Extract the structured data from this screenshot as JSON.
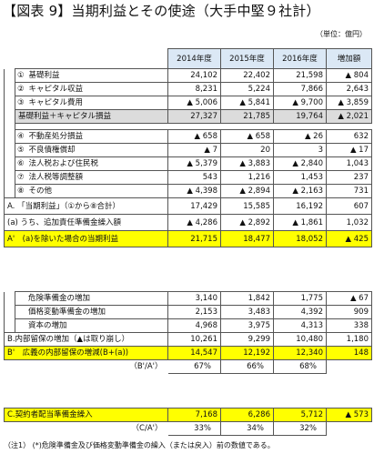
{
  "title": "【図表 9】当期利益とその使途（大手中堅９社計）",
  "unit": "（単位：億円）",
  "note": "（注1） (*)危険準備金及び価格変動準備金の繰入（または戻入）前の数値である。",
  "headers": {
    "y2014": "2014年度",
    "y2015": "2015年度",
    "y2016": "2016年度",
    "change": "増加額"
  },
  "rows": {
    "r1": {
      "no": "①",
      "label": "基礎利益",
      "v2014": "24,102",
      "v2015": "22,402",
      "v2016": "21,598",
      "chg": "▲ 804"
    },
    "r2": {
      "no": "②",
      "label": "キャピタル収益",
      "v2014": "8,231",
      "v2015": "5,224",
      "v2016": "7,866",
      "chg": "2,643"
    },
    "r3": {
      "no": "③",
      "label": "キャピタル費用",
      "v2014": "▲ 5,006",
      "v2015": "▲ 5,841",
      "v2016": "▲ 9,700",
      "chg": "▲ 3,859"
    },
    "sum1": {
      "label": "基礎利益＋キャピタル損益",
      "v2014": "27,327",
      "v2015": "21,785",
      "v2016": "19,764",
      "chg": "▲ 2,021"
    },
    "r4": {
      "no": "④",
      "label": "不動産処分損益",
      "v2014": "▲ 658",
      "v2015": "▲ 658",
      "v2016": "▲ 26",
      "chg": "632"
    },
    "r5": {
      "no": "⑤",
      "label": "不良債権償却",
      "v2014": "▲ 7",
      "v2015": "20",
      "v2016": "3",
      "chg": "▲ 17"
    },
    "r6": {
      "no": "⑥",
      "label": "法人税および住民税",
      "v2014": "▲ 5,379",
      "v2015": "▲ 3,883",
      "v2016": "▲ 2,840",
      "chg": "1,043"
    },
    "r7": {
      "no": "⑦",
      "label": "法人税等調整額",
      "v2014": "543",
      "v2015": "1,216",
      "v2016": "1,453",
      "chg": "237"
    },
    "r8": {
      "no": "⑧",
      "label": "その他",
      "v2014": "▲ 4,398",
      "v2015": "▲ 2,894",
      "v2016": "▲ 2,163",
      "chg": "731"
    },
    "rA": {
      "label": "A. 「当期利益」（①から⑧合計）",
      "v2014": "17,429",
      "v2015": "15,585",
      "v2016": "16,192",
      "chg": "607"
    },
    "ra": {
      "label": "(a) うち、追加責任準備金繰入額",
      "v2014": "▲ 4,286",
      "v2015": "▲ 2,892",
      "v2016": "▲ 1,861",
      "chg": "1,032"
    },
    "rA2": {
      "label": "A'　(a)を除いた場合の当期利益",
      "v2014": "21,715",
      "v2015": "18,477",
      "v2016": "18,052",
      "chg": "▲ 425"
    }
  },
  "rows2": {
    "k1": {
      "label": "危険準備金の増加",
      "v2014": "3,140",
      "v2015": "1,842",
      "v2016": "1,775",
      "chg": "▲ 67"
    },
    "k2": {
      "label": "価格変動準備金の増加",
      "v2014": "2,153",
      "v2015": "3,483",
      "v2016": "4,392",
      "chg": "909"
    },
    "k3": {
      "label": "資本の増加",
      "v2014": "4,968",
      "v2015": "3,975",
      "v2016": "4,313",
      "chg": "338"
    },
    "kB": {
      "label": "B.内部留保の増加（▲は取り崩し）",
      "v2014": "10,261",
      "v2015": "9,299",
      "v2016": "10,480",
      "chg": "1,180"
    },
    "kB2": {
      "label": "B'　広義の内部留保の増減(B+(a))",
      "v2014": "14,547",
      "v2015": "12,192",
      "v2016": "12,340",
      "chg": "148"
    },
    "ratio1": {
      "label": "（B'/A'）",
      "v2014": "67%",
      "v2015": "66%",
      "v2016": "68%"
    }
  },
  "rows3": {
    "c": {
      "label": "C.契約者配当準備金繰入",
      "v2014": "7,168",
      "v2015": "6,286",
      "v2016": "5,712",
      "chg": "▲ 573"
    },
    "ratio2": {
      "label": "（C/A'）",
      "v2014": "33%",
      "v2015": "34%",
      "v2016": "32%"
    }
  }
}
